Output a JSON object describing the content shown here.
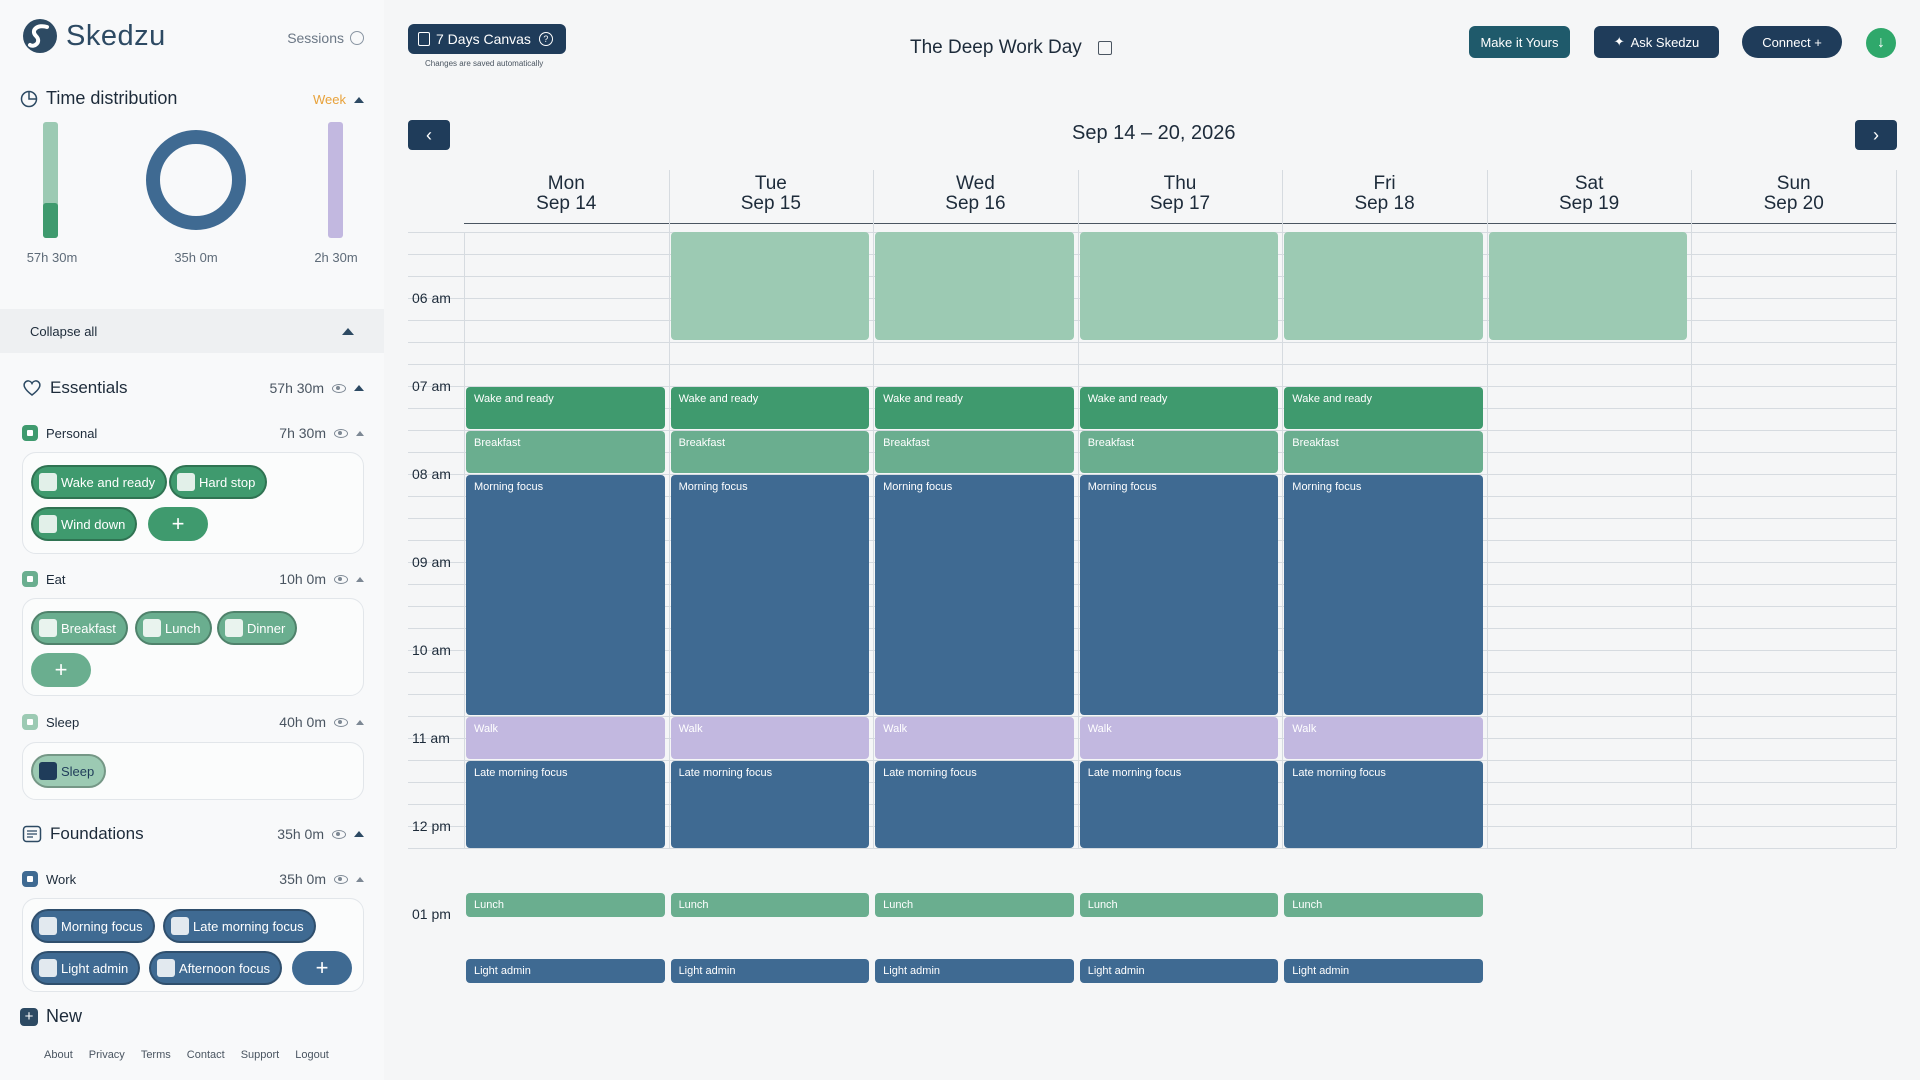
{
  "brand": {
    "name": "Skedzu"
  },
  "sidebar": {
    "sessions_label": "Sessions",
    "time_distribution": {
      "title": "Time distribution",
      "period": "Week",
      "bars": [
        {
          "label": "57h 30m",
          "fill": 0.3,
          "color": "#3f9a6e",
          "track": "#9ccab3"
        },
        {
          "label": "2h 30m",
          "fill": 1.0,
          "color": "#c2b8e0",
          "track": "#c2b8e0"
        }
      ],
      "donut": {
        "label": "35h 0m",
        "color": "#3f6a92"
      }
    },
    "collapse_label": "Collapse all",
    "groups": [
      {
        "name": "Essentials",
        "total": "57h 30m",
        "subs": [
          {
            "name": "Personal",
            "total": "7h 30m",
            "color": "#3f9a6e",
            "chips": [
              "Wake and ready",
              "Hard stop",
              "Wind down"
            ]
          },
          {
            "name": "Eat",
            "total": "10h 0m",
            "color": "#6aae8f",
            "chips": [
              "Breakfast",
              "Lunch",
              "Dinner"
            ]
          },
          {
            "name": "Sleep",
            "total": "40h 0m",
            "color": "#9ccab3",
            "chips": [
              "Sleep"
            ]
          }
        ]
      },
      {
        "name": "Foundations",
        "total": "35h 0m",
        "subs": [
          {
            "name": "Work",
            "total": "35h 0m",
            "color": "#3f6a92",
            "chips": [
              "Morning focus",
              "Late morning focus",
              "Light admin",
              "Afternoon focus"
            ]
          }
        ]
      }
    ],
    "new_label": "New",
    "footer_links": [
      "About",
      "Privacy",
      "Terms",
      "Contact",
      "Support",
      "Logout"
    ]
  },
  "toolbar": {
    "canvas_label": "7 Days Canvas",
    "saved_note": "Changes are saved automatically",
    "plan_title": "The Deep Work Day",
    "make_yours": "Make it Yours",
    "ask": "Ask Skedzu",
    "connect": "Connect +"
  },
  "calendar": {
    "range": "Sep 14 – 20, 2026",
    "days": [
      {
        "dow": "Mon",
        "date": "Sep 14"
      },
      {
        "dow": "Tue",
        "date": "Sep 15"
      },
      {
        "dow": "Wed",
        "date": "Sep 16"
      },
      {
        "dow": "Thu",
        "date": "Sep 17"
      },
      {
        "dow": "Fri",
        "date": "Sep 18"
      },
      {
        "dow": "Sat",
        "date": "Sep 19"
      },
      {
        "dow": "Sun",
        "date": "Sep 20"
      }
    ],
    "time_labels": [
      "06  am",
      "07  am",
      "08  am",
      "09  am",
      "10  am",
      "11  am",
      "12  pm",
      "01  pm"
    ],
    "weekday_events": [
      {
        "title": "Wake and ready",
        "start": "07:00",
        "end": "07:30",
        "color": "#3f9a6e"
      },
      {
        "title": "Breakfast",
        "start": "07:30",
        "end": "08:00",
        "color": "#6aae8f"
      },
      {
        "title": "Morning focus",
        "start": "08:00",
        "end": "10:45",
        "color": "#3f6a92"
      },
      {
        "title": "Walk",
        "start": "10:45",
        "end": "11:15",
        "color": "#c2b8e0"
      },
      {
        "title": "Late morning focus",
        "start": "11:15",
        "end": "12:45",
        "color": "#3f6a92"
      },
      {
        "title": "Lunch",
        "start": "12:45",
        "end": "13:30",
        "color": "#6aae8f"
      },
      {
        "title": "Light admin",
        "start": "13:30",
        "end": "14:00",
        "color": "#3f6a92"
      }
    ],
    "sleep_block": {
      "start": "05:15",
      "end": "06:30",
      "color": "#9ccab3",
      "days": [
        "Tue",
        "Wed",
        "Thu",
        "Fri",
        "Sat"
      ]
    }
  }
}
